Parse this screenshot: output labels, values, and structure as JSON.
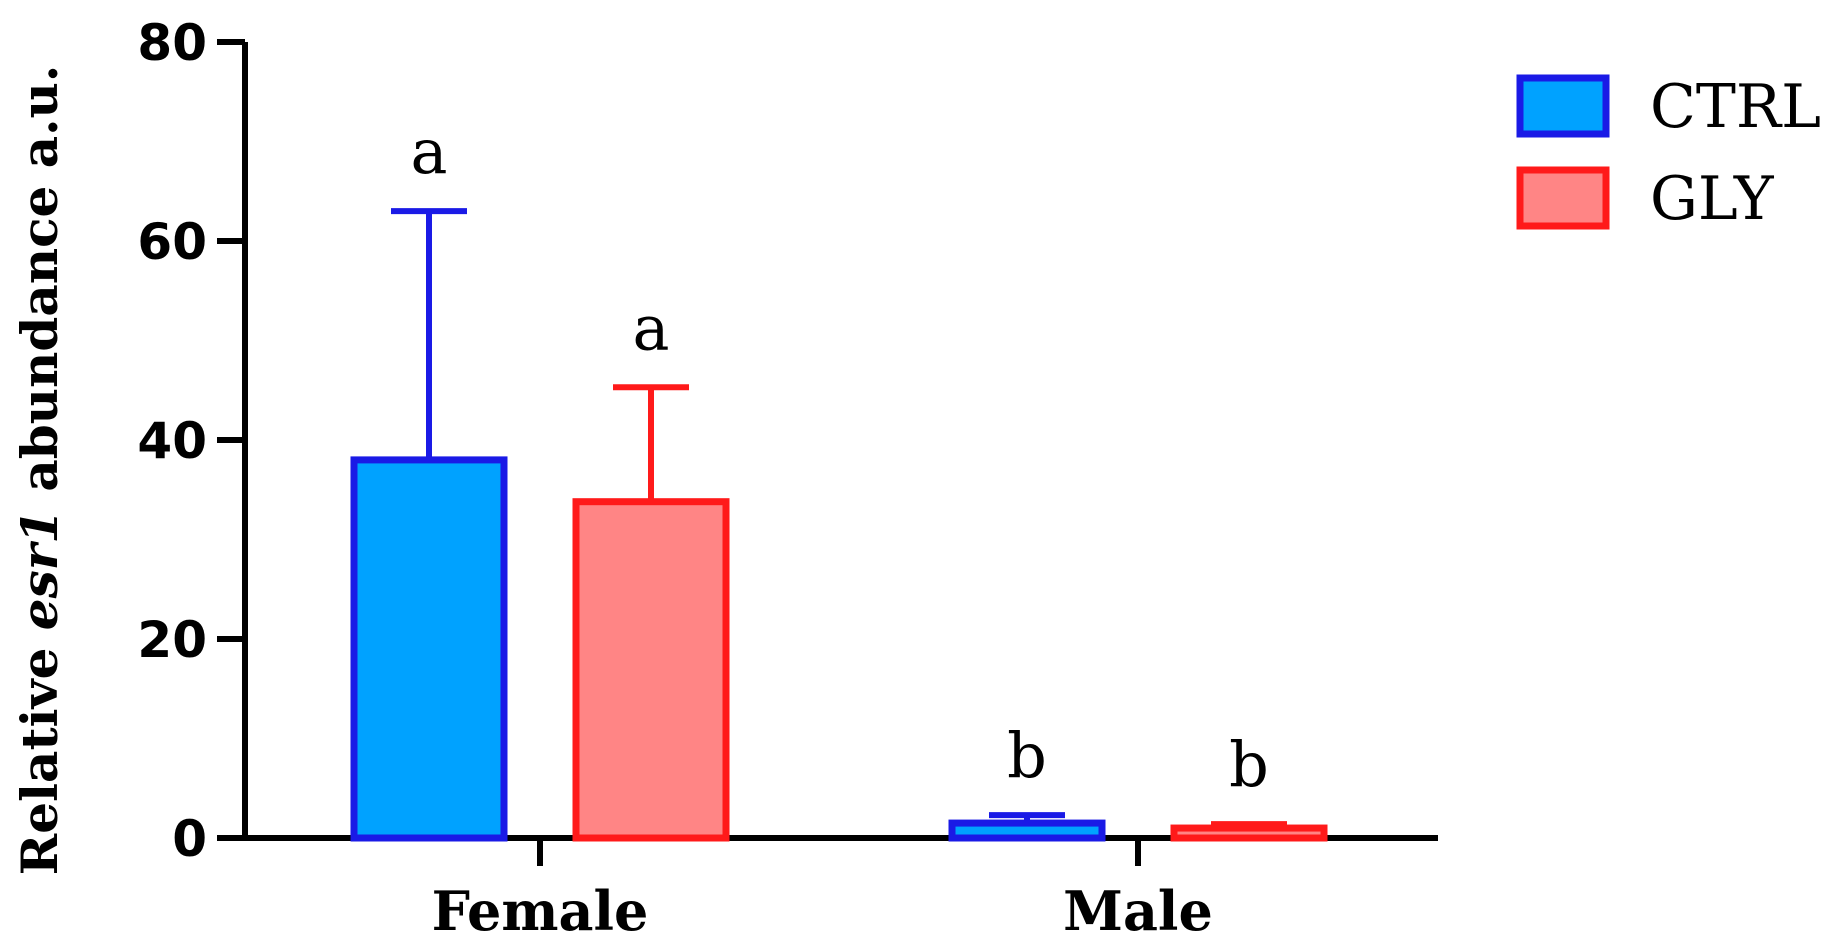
{
  "chart_data": {
    "type": "bar",
    "categories": [
      "Female",
      "Male"
    ],
    "series": [
      {
        "name": "CTRL",
        "values": [
          38,
          1.5
        ],
        "errors": [
          25,
          0.8
        ],
        "significance": [
          "a",
          "b"
        ],
        "fill": "#00a2ff",
        "stroke": "#1a1ae6"
      },
      {
        "name": "GLY",
        "values": [
          33.8,
          1.0
        ],
        "errors": [
          11.5,
          0.4
        ],
        "significance": [
          "a",
          "b"
        ],
        "fill": "#ff8585",
        "stroke": "#ff1a1a"
      }
    ],
    "ylabel": {
      "prefix": "Relative ",
      "italic": "esr1",
      "suffix": " abundance a.u."
    },
    "xlabel": "",
    "ylim": [
      0,
      80
    ],
    "yticks": [
      0,
      20,
      40,
      60,
      80
    ],
    "grid": false,
    "legend_position": "top-right"
  }
}
